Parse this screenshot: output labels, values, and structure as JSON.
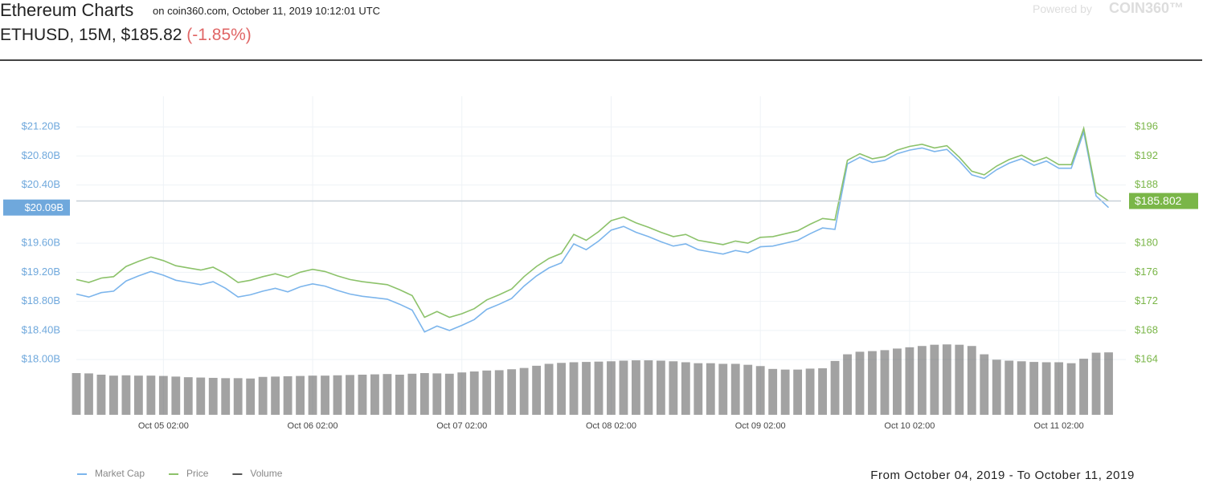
{
  "header": {
    "title": "Ethereum Charts",
    "subtitle": "on coin360.com, October 11, 2019 10:12:01 UTC",
    "pair": "ETHUSD, 15M, $185.82",
    "change": "(-1.85%)",
    "powered_by": "Powered by",
    "brand": "COIN360™"
  },
  "chart_data": {
    "type": "line",
    "x": [
      "Oct 04 12:00",
      "Oct 04 14:00",
      "Oct 04 16:00",
      "Oct 04 18:00",
      "Oct 04 20:00",
      "Oct 04 22:00",
      "Oct 05 00:00",
      "Oct 05 02:00",
      "Oct 05 04:00",
      "Oct 05 06:00",
      "Oct 05 08:00",
      "Oct 05 10:00",
      "Oct 05 12:00",
      "Oct 05 14:00",
      "Oct 05 16:00",
      "Oct 05 18:00",
      "Oct 05 20:00",
      "Oct 05 22:00",
      "Oct 06 00:00",
      "Oct 06 02:00",
      "Oct 06 04:00",
      "Oct 06 06:00",
      "Oct 06 08:00",
      "Oct 06 10:00",
      "Oct 06 12:00",
      "Oct 06 14:00",
      "Oct 06 16:00",
      "Oct 06 18:00",
      "Oct 06 20:00",
      "Oct 06 22:00",
      "Oct 07 00:00",
      "Oct 07 02:00",
      "Oct 07 04:00",
      "Oct 07 06:00",
      "Oct 07 08:00",
      "Oct 07 10:00",
      "Oct 07 12:00",
      "Oct 07 14:00",
      "Oct 07 16:00",
      "Oct 07 18:00",
      "Oct 07 20:00",
      "Oct 07 22:00",
      "Oct 08 00:00",
      "Oct 08 02:00",
      "Oct 08 04:00",
      "Oct 08 06:00",
      "Oct 08 08:00",
      "Oct 08 10:00",
      "Oct 08 12:00",
      "Oct 08 14:00",
      "Oct 08 16:00",
      "Oct 08 18:00",
      "Oct 08 20:00",
      "Oct 08 22:00",
      "Oct 09 00:00",
      "Oct 09 02:00",
      "Oct 09 04:00",
      "Oct 09 06:00",
      "Oct 09 08:00",
      "Oct 09 10:00",
      "Oct 09 12:00",
      "Oct 09 14:00",
      "Oct 09 16:00",
      "Oct 09 18:00",
      "Oct 09 20:00",
      "Oct 09 22:00",
      "Oct 10 00:00",
      "Oct 10 02:00",
      "Oct 10 04:00",
      "Oct 10 06:00",
      "Oct 10 08:00",
      "Oct 10 10:00",
      "Oct 10 12:00",
      "Oct 10 14:00",
      "Oct 10 16:00",
      "Oct 10 18:00",
      "Oct 10 20:00",
      "Oct 10 22:00",
      "Oct 11 00:00",
      "Oct 11 02:00",
      "Oct 11 04:00",
      "Oct 11 06:00",
      "Oct 11 08:00",
      "Oct 11 10:00"
    ],
    "series": [
      {
        "name": "Market Cap",
        "color": "#7cb5ec",
        "axis": "y",
        "values": [
          18.9,
          18.86,
          18.92,
          18.94,
          19.08,
          19.15,
          19.21,
          19.16,
          19.09,
          19.06,
          19.03,
          19.07,
          18.98,
          18.86,
          18.89,
          18.94,
          18.98,
          18.93,
          19.0,
          19.04,
          19.01,
          18.95,
          18.9,
          18.87,
          18.85,
          18.83,
          18.76,
          18.68,
          18.38,
          18.46,
          18.4,
          18.47,
          18.55,
          18.69,
          18.76,
          18.84,
          19.01,
          19.15,
          19.26,
          19.33,
          19.59,
          19.51,
          19.63,
          19.78,
          19.83,
          19.75,
          19.69,
          19.62,
          19.56,
          19.59,
          19.51,
          19.48,
          19.45,
          19.5,
          19.47,
          19.55,
          19.56,
          19.6,
          19.64,
          19.73,
          19.81,
          19.79,
          20.69,
          20.78,
          20.71,
          20.74,
          20.83,
          20.88,
          20.91,
          20.86,
          20.89,
          20.73,
          20.54,
          20.49,
          20.61,
          20.7,
          20.76,
          20.67,
          20.73,
          20.63,
          20.63,
          21.13,
          20.25,
          20.09
        ]
      },
      {
        "name": "Price",
        "color": "#8cc26a",
        "axis": "y2",
        "values": [
          175.0,
          174.6,
          175.2,
          175.4,
          176.8,
          177.5,
          178.1,
          177.6,
          176.9,
          176.6,
          176.3,
          176.7,
          175.8,
          174.6,
          174.9,
          175.4,
          175.8,
          175.3,
          176.0,
          176.4,
          176.1,
          175.5,
          175.0,
          174.7,
          174.5,
          174.3,
          173.6,
          172.8,
          169.8,
          170.6,
          169.8,
          170.3,
          171.0,
          172.2,
          172.9,
          173.7,
          175.4,
          176.8,
          177.9,
          178.6,
          181.2,
          180.4,
          181.6,
          183.1,
          183.6,
          182.8,
          182.2,
          181.5,
          180.9,
          181.2,
          180.4,
          180.1,
          179.8,
          180.3,
          180.0,
          180.8,
          180.9,
          181.3,
          181.7,
          182.6,
          183.4,
          183.2,
          191.4,
          192.3,
          191.6,
          191.9,
          192.8,
          193.3,
          193.6,
          193.1,
          193.4,
          191.8,
          189.9,
          189.4,
          190.6,
          191.5,
          192.1,
          191.2,
          191.8,
          190.8,
          190.8,
          195.8,
          187.0,
          185.8
        ]
      },
      {
        "name": "Volume",
        "color": "#555555",
        "axis": "y3",
        "type": "bar",
        "values": [
          13.1,
          13.0,
          12.6,
          12.3,
          12.4,
          12.3,
          12.3,
          12.2,
          12.0,
          11.8,
          11.7,
          11.6,
          11.5,
          11.5,
          11.4,
          11.9,
          12.0,
          12.1,
          12.2,
          12.3,
          12.3,
          12.4,
          12.5,
          12.6,
          12.7,
          12.8,
          12.6,
          12.9,
          13.1,
          13.0,
          12.9,
          13.3,
          13.6,
          13.9,
          14.0,
          14.3,
          14.7,
          15.4,
          16.0,
          16.3,
          16.5,
          16.6,
          16.7,
          16.8,
          17.0,
          17.1,
          17.1,
          17.0,
          16.8,
          16.5,
          16.2,
          16.2,
          16.0,
          16.0,
          15.7,
          15.3,
          14.4,
          14.2,
          14.2,
          14.5,
          14.6,
          16.9,
          19.0,
          19.8,
          20.0,
          20.3,
          20.8,
          21.2,
          21.6,
          22.0,
          22.1,
          22.0,
          21.6,
          19.0,
          17.3,
          17.0,
          16.8,
          16.6,
          16.5,
          16.5,
          16.2,
          17.6,
          19.5,
          19.6
        ]
      }
    ],
    "xlim": [
      "Oct 04 12:00",
      "Oct 11 12:00"
    ],
    "xticks": [
      "Oct 05 02:00",
      "Oct 06 02:00",
      "Oct 07 02:00",
      "Oct 08 02:00",
      "Oct 09 02:00",
      "Oct 10 02:00",
      "Oct 11 02:00"
    ],
    "ylim": [
      17.24,
      21.62
    ],
    "yticks": [
      {
        "value": 18.0,
        "label": "$18.00B"
      },
      {
        "value": 18.4,
        "label": "$18.40B"
      },
      {
        "value": 18.8,
        "label": "$18.80B"
      },
      {
        "value": 19.2,
        "label": "$19.20B"
      },
      {
        "value": 19.6,
        "label": "$19.60B"
      },
      {
        "value": 20.4,
        "label": "$20.40B"
      },
      {
        "value": 20.8,
        "label": "$20.80B"
      },
      {
        "value": 21.2,
        "label": "$21.20B"
      }
    ],
    "y2lim": [
      156.4,
      200.2
    ],
    "y2ticks": [
      {
        "value": 164,
        "label": "$164"
      },
      {
        "value": 168,
        "label": "$168"
      },
      {
        "value": 172,
        "label": "$172"
      },
      {
        "value": 176,
        "label": "$176"
      },
      {
        "value": 180,
        "label": "$180"
      },
      {
        "value": 188,
        "label": "$188"
      },
      {
        "value": 192,
        "label": "$192"
      },
      {
        "value": 196,
        "label": "$196"
      }
    ],
    "y3lim": [
      0,
      100
    ],
    "y_current": {
      "value": 20.09,
      "label": "$20.09B"
    },
    "y2_current": {
      "value": 185.802,
      "label": "$185.802"
    },
    "grid": true,
    "legend": "bottom-left"
  },
  "footer": {
    "range": "From October 04, 2019 - To October 11, 2019"
  }
}
